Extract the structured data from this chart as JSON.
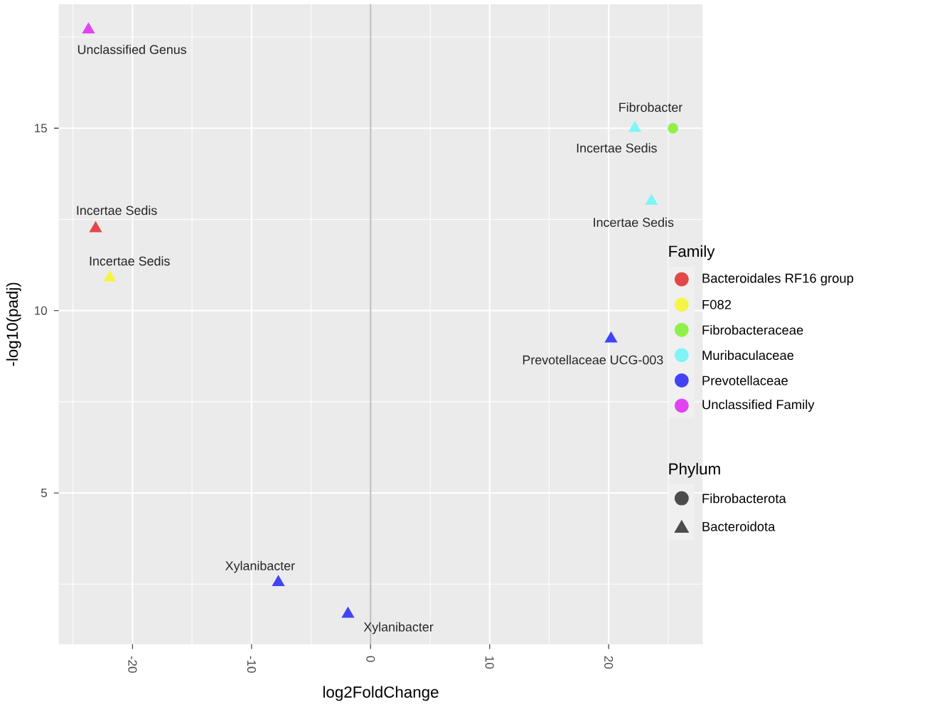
{
  "chart_data": {
    "type": "scatter",
    "xlabel": "log2FoldChange",
    "ylabel": "-log10(padj)",
    "legend_title": "Family",
    "legend": "right",
    "grid": true,
    "xlim": [
      -26.2,
      27.9
    ],
    "ylim": [
      0.85,
      18.4
    ],
    "xticks": [
      -20,
      -10,
      0,
      10,
      20
    ],
    "yticks": [
      5,
      10,
      15
    ],
    "ref_lines": [
      {
        "axis": "x",
        "value": 0,
        "color": "#bebebe"
      }
    ],
    "series": [
      {
        "name": "Bacteroidales RF16 group",
        "color": "#e34848",
        "marker": "triangle",
        "x": [
          -23.1
        ],
        "values": [
          12.25
        ]
      },
      {
        "name": "F082",
        "color": "#f5f547",
        "marker": "triangle",
        "x": [
          -21.9
        ],
        "values": [
          10.9
        ]
      },
      {
        "name": "Fibrobacteraceae",
        "color": "#90f04a",
        "marker": "circle",
        "x": [
          25.4
        ],
        "values": [
          15.0
        ]
      },
      {
        "name": "Muribaculaceae",
        "color": "#80f5f5",
        "marker": "triangle",
        "x": [
          22.2,
          23.6
        ],
        "values": [
          15.0,
          13.0
        ]
      },
      {
        "name": "Prevotellaceae",
        "color": "#4343f5",
        "marker": "triangle",
        "x": [
          20.2,
          -7.75,
          -1.9
        ],
        "values": [
          9.23,
          2.55,
          1.68
        ]
      },
      {
        "name": "Unclassified Family",
        "color": "#e243f0",
        "marker": "triangle",
        "x": [
          -23.7
        ],
        "values": [
          17.7
        ]
      }
    ],
    "annotations": [
      {
        "text": "Unclassified Genus",
        "x": -23.7,
        "y": 17.7
      },
      {
        "text": "Incertae Sedis",
        "x": -23.1,
        "y": 12.25
      },
      {
        "text": "Incertae Sedis",
        "x": -21.9,
        "y": 10.9
      },
      {
        "text": "Fibrobacter",
        "x": 25.4,
        "y": 15.0
      },
      {
        "text": "Incertae Sedis",
        "x": 22.2,
        "y": 15.0
      },
      {
        "text": "Incertae Sedis",
        "x": 23.6,
        "y": 13.0
      },
      {
        "text": "Prevotellaceae UCG-003",
        "x": 20.2,
        "y": 9.23
      },
      {
        "text": "Xylanibacter",
        "x": -7.75,
        "y": 2.55
      },
      {
        "text": "Xylanibacter",
        "x": -1.9,
        "y": 1.68
      },
      "Phylum",
      "Fibrobacterota",
      "Bacteroidota"
    ]
  }
}
